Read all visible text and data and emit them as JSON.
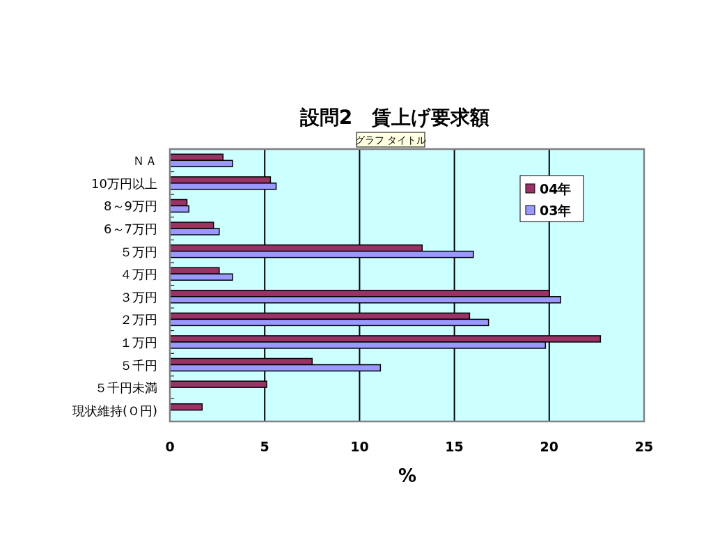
{
  "chart_data": {
    "type": "bar",
    "orientation": "horizontal",
    "title": "設問2　賃上げ要求額",
    "xlabel": "%",
    "annotations": [
      "グラフ タイトル"
    ],
    "categories": [
      "ＮＡ",
      "10万円以上",
      "8～9万円",
      "6～7万円",
      "５万円",
      "４万円",
      "３万円",
      "２万円",
      "１万円",
      "５千円",
      "５千円未満",
      "現状維持(Ｏ円)"
    ],
    "series": [
      {
        "name": "04年",
        "color": "#993366",
        "values": [
          2.8,
          5.3,
          0.9,
          2.3,
          13.3,
          2.6,
          20.0,
          15.8,
          22.7,
          7.5,
          5.1,
          1.7
        ]
      },
      {
        "name": "03年",
        "color": "#9999ff",
        "values": [
          3.3,
          5.6,
          1.0,
          2.6,
          16.0,
          3.3,
          20.6,
          16.8,
          19.8,
          11.1,
          null,
          null
        ]
      }
    ],
    "xlim": [
      0,
      25
    ],
    "xticks": [
      0,
      5,
      10,
      15,
      20,
      25
    ],
    "grid": "x",
    "legend": "top right"
  }
}
